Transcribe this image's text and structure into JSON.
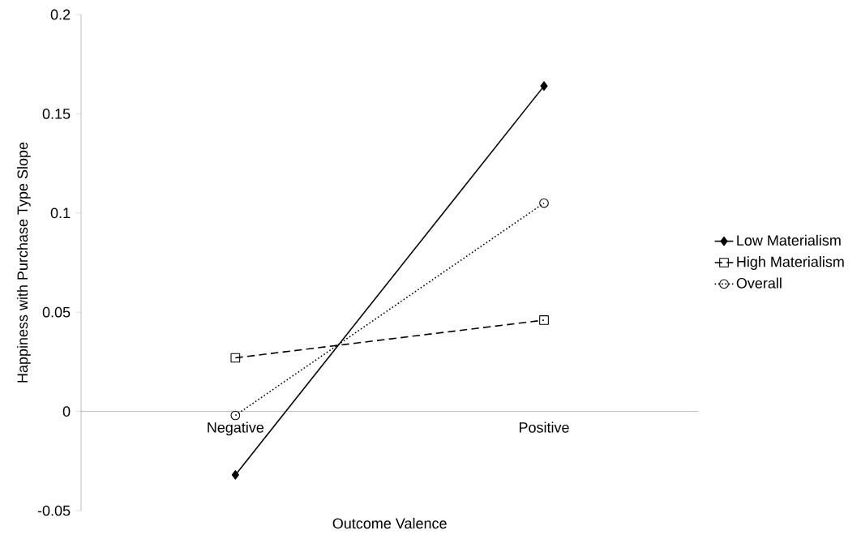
{
  "chart_data": {
    "type": "line",
    "xlabel": "Outcome Valence",
    "ylabel": "Happiness with Purchase Type Slope",
    "categories": [
      "Negative",
      "Positive"
    ],
    "series": [
      {
        "name": "Low Materialism",
        "color": "#000000",
        "values": [
          -0.032,
          0.164
        ],
        "marker": "diamond",
        "line_style": "solid"
      },
      {
        "name": "High Materialism",
        "color": "#000000",
        "values": [
          0.027,
          0.046
        ],
        "marker": "square",
        "line_style": "dashed"
      },
      {
        "name": "Overall",
        "color": "#000000",
        "values": [
          -0.002,
          0.105
        ],
        "marker": "circle",
        "line_style": "dotted"
      }
    ],
    "ylim": [
      -0.05,
      0.2
    ],
    "yticks": [
      -0.05,
      0,
      0.05,
      0.1,
      0.15,
      0.2
    ],
    "grid": false,
    "legend": "right"
  }
}
